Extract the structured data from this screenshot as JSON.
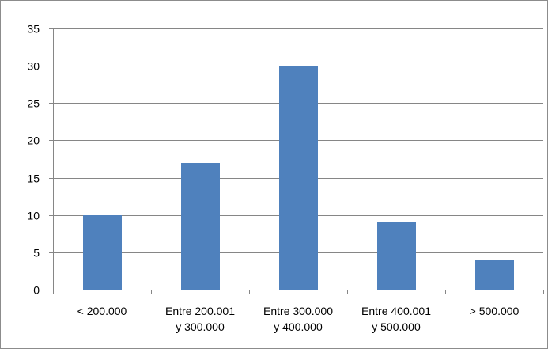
{
  "chart_data": {
    "type": "bar",
    "title": "",
    "xlabel": "",
    "ylabel": "",
    "categories": [
      [
        "< 200.000"
      ],
      [
        "Entre 200.001",
        "y 300.000"
      ],
      [
        "Entre 300.000",
        "y 400.000"
      ],
      [
        "Entre 400.001",
        "y 500.000"
      ],
      [
        "> 500.000"
      ]
    ],
    "values": [
      10,
      17,
      30,
      9,
      4
    ],
    "ylim": [
      0,
      35
    ],
    "yticks": [
      0,
      5,
      10,
      15,
      20,
      25,
      30,
      35
    ],
    "grid": true,
    "legend": "none",
    "bar_color": "#4f81bd",
    "grid_color": "#868686"
  }
}
